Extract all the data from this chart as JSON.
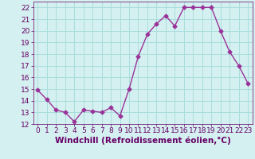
{
  "x": [
    0,
    1,
    2,
    3,
    4,
    5,
    6,
    7,
    8,
    9,
    10,
    11,
    12,
    13,
    14,
    15,
    16,
    17,
    18,
    19,
    20,
    21,
    22,
    23
  ],
  "y": [
    14.9,
    14.1,
    13.2,
    13.0,
    12.2,
    13.2,
    13.1,
    13.0,
    13.4,
    12.7,
    15.0,
    17.8,
    19.7,
    20.6,
    21.3,
    20.4,
    22.0,
    22.0,
    22.0,
    22.0,
    20.0,
    18.2,
    17.0,
    15.5
  ],
  "line_color": "#993399",
  "marker": "D",
  "marker_size": 2.5,
  "bg_color": "#d5f0f0",
  "grid_color": "#aadddd",
  "xlabel": "Windchill (Refroidissement éolien,°C)",
  "xlabel_color": "#660066",
  "tick_color": "#660066",
  "ylim": [
    12,
    22.5
  ],
  "yticks": [
    12,
    13,
    14,
    15,
    16,
    17,
    18,
    19,
    20,
    21,
    22
  ],
  "xticks": [
    0,
    1,
    2,
    3,
    4,
    5,
    6,
    7,
    8,
    9,
    10,
    11,
    12,
    13,
    14,
    15,
    16,
    17,
    18,
    19,
    20,
    21,
    22,
    23
  ],
  "line_width": 1.0,
  "tick_fontsize": 6.5,
  "xlabel_fontsize": 7.5
}
